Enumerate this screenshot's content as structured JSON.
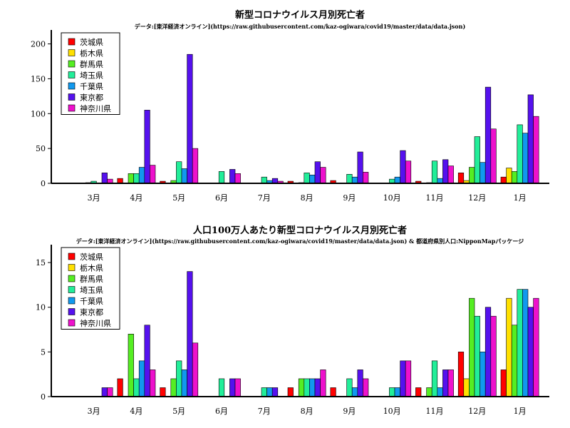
{
  "chart_data": [
    {
      "type": "bar",
      "title": "新型コロナウイルス月別死亡者",
      "subtitle": "データ:[東洋経済オンライン](https://raw.githubusercontent.com/kaz-ogiwara/covid19/master/data/data.json)",
      "categories": [
        "3月",
        "4月",
        "5月",
        "6月",
        "7月",
        "8月",
        "9月",
        "10月",
        "11月",
        "12月",
        "1月"
      ],
      "ylim": [
        0,
        220
      ],
      "yticks": [
        0,
        50,
        100,
        150,
        200
      ],
      "legend_position": "top-left",
      "series": [
        {
          "name": "茨城県",
          "color": "#ff0000",
          "values": [
            0,
            7,
            3,
            0,
            0,
            3,
            4,
            0,
            3,
            15,
            9
          ]
        },
        {
          "name": "栃木県",
          "color": "#ffe000",
          "values": [
            0,
            0,
            0,
            0,
            0,
            0,
            0,
            0,
            0,
            4,
            22
          ]
        },
        {
          "name": "群馬県",
          "color": "#55ee22",
          "values": [
            1,
            14,
            4,
            0,
            0,
            1,
            0,
            0,
            1,
            23,
            17
          ]
        },
        {
          "name": "埼玉県",
          "color": "#22ee99",
          "values": [
            3,
            14,
            31,
            17,
            9,
            15,
            13,
            6,
            32,
            67,
            84
          ]
        },
        {
          "name": "千葉県",
          "color": "#1199ee",
          "values": [
            0,
            23,
            21,
            0,
            4,
            12,
            9,
            9,
            7,
            30,
            72
          ]
        },
        {
          "name": "東京都",
          "color": "#5511ee",
          "values": [
            15,
            105,
            185,
            20,
            7,
            31,
            45,
            47,
            34,
            138,
            127
          ]
        },
        {
          "name": "神奈川県",
          "color": "#ee11cc",
          "values": [
            6,
            26,
            50,
            14,
            3,
            23,
            16,
            32,
            25,
            78,
            96
          ]
        }
      ]
    },
    {
      "type": "bar",
      "title": "人口100万人あたり新型コロナウイルス月別死亡者",
      "subtitle": "データ:[東洋経済オンライン](https://raw.githubusercontent.com/kaz-ogiwara/covid19/master/data/data.json) & 都道府県別人口:NipponMapパッケージ",
      "categories": [
        "3月",
        "4月",
        "5月",
        "6月",
        "7月",
        "8月",
        "9月",
        "10月",
        "11月",
        "12月",
        "1月"
      ],
      "ylim": [
        0,
        17
      ],
      "yticks": [
        0,
        5,
        10,
        15
      ],
      "legend_position": "top-left",
      "series": [
        {
          "name": "茨城県",
          "color": "#ff0000",
          "values": [
            0,
            2,
            1,
            0,
            0,
            1,
            1,
            0,
            1,
            5,
            3
          ]
        },
        {
          "name": "栃木県",
          "color": "#ffe000",
          "values": [
            0,
            0,
            0,
            0,
            0,
            0,
            0,
            0,
            0,
            2,
            11
          ]
        },
        {
          "name": "群馬県",
          "color": "#55ee22",
          "values": [
            0,
            7,
            2,
            0,
            0,
            2,
            0,
            0,
            1,
            11,
            8
          ]
        },
        {
          "name": "埼玉県",
          "color": "#22ee99",
          "values": [
            0,
            2,
            4,
            2,
            1,
            2,
            2,
            1,
            4,
            9,
            12
          ]
        },
        {
          "name": "千葉県",
          "color": "#1199ee",
          "values": [
            0,
            4,
            3,
            0,
            1,
            2,
            1,
            1,
            1,
            5,
            12
          ]
        },
        {
          "name": "東京都",
          "color": "#5511ee",
          "values": [
            1,
            8,
            14,
            2,
            1,
            2,
            3,
            4,
            3,
            10,
            10
          ]
        },
        {
          "name": "神奈川県",
          "color": "#ee11cc",
          "values": [
            1,
            3,
            6,
            2,
            0,
            3,
            2,
            4,
            3,
            9,
            11
          ]
        }
      ]
    }
  ]
}
